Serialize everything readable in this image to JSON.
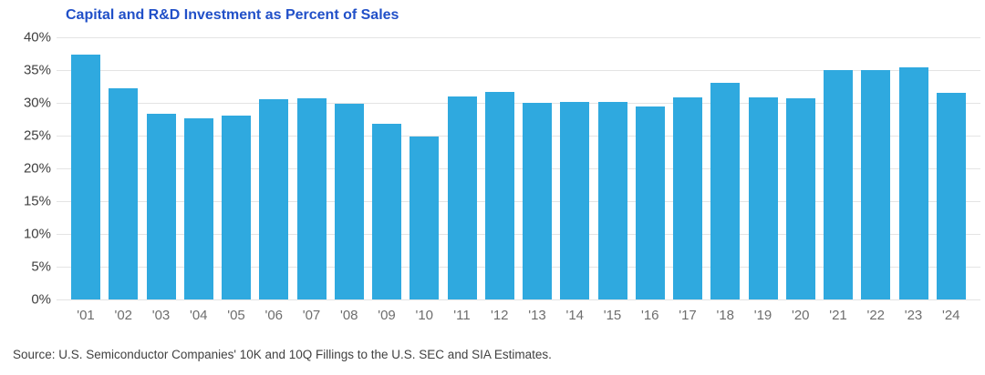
{
  "title": "Capital and R&D Investment as Percent of Sales",
  "source_note": "Source: U.S. Semiconductor Companies' 10K and 10Q Fillings to the U.S. SEC and SIA Estimates.",
  "colors": {
    "bar": "#2FA9DF",
    "title": "#2150C8",
    "grid": "#E4E4E4",
    "ylabel": "#404040",
    "xlabel": "#6E6E6E",
    "source": "#414141"
  },
  "chart_data": {
    "type": "bar",
    "title": "Capital and R&D Investment as Percent of Sales",
    "categories": [
      "'01",
      "'02",
      "'03",
      "'04",
      "'05",
      "'06",
      "'07",
      "'08",
      "'09",
      "'10",
      "'11",
      "'12",
      "'13",
      "'14",
      "'15",
      "'16",
      "'17",
      "'18",
      "'19",
      "'20",
      "'21",
      "'22",
      "'23",
      "'24"
    ],
    "values": [
      37.4,
      32.2,
      28.4,
      27.6,
      28.1,
      30.6,
      30.7,
      29.8,
      26.8,
      24.9,
      31.0,
      31.7,
      30.0,
      30.1,
      30.2,
      29.5,
      30.9,
      33.0,
      30.9,
      30.7,
      35.0,
      35.0,
      35.4,
      31.5
    ],
    "xlabel": "",
    "ylabel": "",
    "ylim": [
      0,
      40
    ],
    "y_ticks": [
      "40%",
      "35%",
      "30%",
      "25%",
      "20%",
      "15%",
      "10%",
      "5%",
      "0%"
    ],
    "y_tick_values": [
      40,
      35,
      30,
      25,
      20,
      15,
      10,
      5,
      0
    ],
    "grid": "horizontal",
    "legend": "none",
    "bar_color": "#2FA9DF",
    "unit": "percent of sales"
  }
}
